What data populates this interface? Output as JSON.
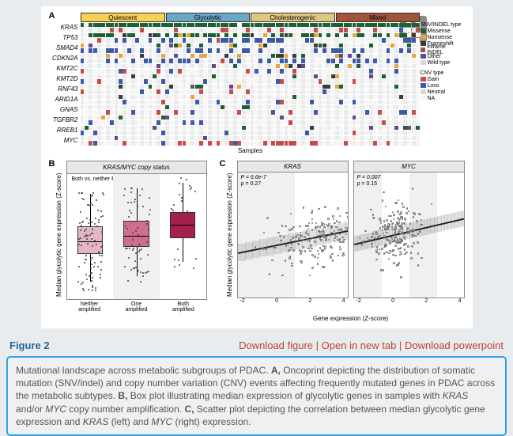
{
  "figure_label": "Figure 2",
  "links": {
    "download_fig": "Download figure",
    "new_tab": "Open in new tab",
    "download_ppt": "Download powerpoint"
  },
  "caption_parts": {
    "lead": "Mutational landscape across metabolic subgroups of PDAC. ",
    "A_lbl": "A,",
    "A_txt": " Oncoprint depicting the distribution of somatic mutation (SNV/indel) and copy number variation (CNV) events affecting frequently mutated genes in PDAC across the metabolic subtypes. ",
    "B_lbl": "B,",
    "B_txt_a": " Box plot illustrating median expression of glycolytic genes in samples with ",
    "B_i1": "KRAS",
    "B_txt_b": " and/or ",
    "B_i2": "MYC",
    "B_txt_c": " copy number amplification. ",
    "C_lbl": "C,",
    "C_txt_a": " Scatter plot depicting the correlation between median glycolytic gene expression and ",
    "C_i1": "KRAS",
    "C_txt_b": " (left) and ",
    "C_i2": "MYC",
    "C_txt_c": " (right) expression."
  },
  "oncoprint": {
    "panel_letter": "A",
    "subtypes": [
      {
        "label": "Quiescent",
        "color": "#f7d154"
      },
      {
        "label": "Glycolytic",
        "color": "#6aa7c4"
      },
      {
        "label": "Cholesterogenic",
        "color": "#e0c77f"
      },
      {
        "label": "Mixed",
        "color": "#a0543a"
      }
    ],
    "genes": [
      "KRAS",
      "TP53",
      "SMAD4",
      "CDKN2A",
      "KMT2C",
      "KMT2D",
      "RNF43",
      "ARID1A",
      "GNAS",
      "TGFBR2",
      "RREB1",
      "MYC"
    ],
    "samples_label": "Samples",
    "snv_legend_title": "SNV/INDEL type",
    "snv_legend": [
      {
        "label": "Missense",
        "color": "#1b6131"
      },
      {
        "label": "Nonsense",
        "color": "#e7a53c"
      },
      {
        "label": "Frameshift",
        "color": "#3b3b3b"
      },
      {
        "label": "Inframe INDEL",
        "color": "#9b5050"
      },
      {
        "label": "Other",
        "color": "#614a8a"
      },
      {
        "label": "Wild type",
        "color": "#d8d8d8"
      }
    ],
    "cnv_legend_title": "CNV type",
    "cnv_legend": [
      {
        "label": "Gain",
        "color": "#c94c4c"
      },
      {
        "label": "Loss",
        "color": "#3d5aa8"
      },
      {
        "label": "Neutral",
        "color": "#d8d8d8"
      },
      {
        "label": "NA",
        "color": "#f4f4f4"
      }
    ],
    "n_samples": 80,
    "grid_bg_even": "#eaeaea",
    "grid_bg_odd": "#f6f6f6",
    "mutation_rates": {
      "KRAS": {
        "snv_mix": {
          "Missense": 0.95,
          "Wild": 0.05
        },
        "cnv_mix": {
          "Gain": 0.25,
          "Loss": 0.02,
          "Neutral": 0.6,
          "NA": 0.13
        }
      },
      "TP53": {
        "snv_mix": {
          "Missense": 0.45,
          "Nonsense": 0.1,
          "Frameshift": 0.1,
          "Wild": 0.35
        },
        "cnv_mix": {
          "Gain": 0.05,
          "Loss": 0.25,
          "Neutral": 0.55,
          "NA": 0.15
        }
      },
      "SMAD4": {
        "snv_mix": {
          "Missense": 0.1,
          "Nonsense": 0.05,
          "Frameshift": 0.05,
          "Wild": 0.8
        },
        "cnv_mix": {
          "Gain": 0.02,
          "Loss": 0.35,
          "Neutral": 0.5,
          "NA": 0.13
        }
      },
      "CDKN2A": {
        "snv_mix": {
          "Missense": 0.05,
          "Nonsense": 0.05,
          "Frameshift": 0.08,
          "Wild": 0.82
        },
        "cnv_mix": {
          "Gain": 0.02,
          "Loss": 0.45,
          "Neutral": 0.4,
          "NA": 0.13
        }
      },
      "KMT2C": {
        "snv_mix": {
          "Missense": 0.06,
          "Nonsense": 0.03,
          "Frameshift": 0.02,
          "Wild": 0.89
        },
        "cnv_mix": {
          "Gain": 0.05,
          "Loss": 0.08,
          "Neutral": 0.72,
          "NA": 0.15
        }
      },
      "KMT2D": {
        "snv_mix": {
          "Missense": 0.05,
          "Nonsense": 0.02,
          "Frameshift": 0.02,
          "Wild": 0.91
        },
        "cnv_mix": {
          "Gain": 0.04,
          "Loss": 0.06,
          "Neutral": 0.75,
          "NA": 0.15
        }
      },
      "RNF43": {
        "snv_mix": {
          "Missense": 0.04,
          "Nonsense": 0.03,
          "Frameshift": 0.03,
          "Wild": 0.9
        },
        "cnv_mix": {
          "Gain": 0.03,
          "Loss": 0.08,
          "Neutral": 0.74,
          "NA": 0.15
        }
      },
      "ARID1A": {
        "snv_mix": {
          "Missense": 0.04,
          "Nonsense": 0.03,
          "Frameshift": 0.04,
          "Wild": 0.89
        },
        "cnv_mix": {
          "Gain": 0.02,
          "Loss": 0.1,
          "Neutral": 0.73,
          "NA": 0.15
        }
      },
      "GNAS": {
        "snv_mix": {
          "Missense": 0.05,
          "Wild": 0.95
        },
        "cnv_mix": {
          "Gain": 0.1,
          "Loss": 0.03,
          "Neutral": 0.72,
          "NA": 0.15
        }
      },
      "TGFBR2": {
        "snv_mix": {
          "Missense": 0.03,
          "Nonsense": 0.02,
          "Frameshift": 0.02,
          "Wild": 0.93
        },
        "cnv_mix": {
          "Gain": 0.02,
          "Loss": 0.08,
          "Neutral": 0.75,
          "NA": 0.15
        }
      },
      "RREB1": {
        "snv_mix": {
          "Missense": 0.04,
          "Frameshift": 0.02,
          "Wild": 0.94
        },
        "cnv_mix": {
          "Gain": 0.03,
          "Loss": 0.07,
          "Neutral": 0.75,
          "NA": 0.15
        }
      },
      "MYC": {
        "snv_mix": {
          "Missense": 0.01,
          "Wild": 0.99
        },
        "cnv_mix": {
          "Gain": 0.3,
          "Loss": 0.02,
          "Neutral": 0.55,
          "NA": 0.13
        }
      }
    }
  },
  "boxplot": {
    "panel_letter": "B",
    "title_text": "KRAS/MYC copy status",
    "title_italic_parts": [
      "KRAS",
      "MYC"
    ],
    "pval_text": "Both vs. neither P = 0.015",
    "ylabel": "Median glycolytic gene expression (Z-score)",
    "ylim": [
      -2.2,
      2.2
    ],
    "categories": [
      "Neither amplified",
      "One amplified",
      "Both amplified"
    ],
    "box_colors": [
      "#e2b6c2",
      "#cf6d8c",
      "#a71f4d"
    ],
    "boxes": [
      {
        "q1": -0.6,
        "med": -0.15,
        "q3": 0.35,
        "lo": -1.6,
        "hi": 1.5,
        "n_jitter": 95
      },
      {
        "q1": -0.35,
        "med": 0.05,
        "q3": 0.55,
        "lo": -1.4,
        "hi": 1.7,
        "n_jitter": 60
      },
      {
        "q1": -0.05,
        "med": 0.45,
        "q3": 0.85,
        "lo": -0.9,
        "hi": 1.9,
        "n_jitter": 25
      }
    ],
    "strip_color": "#f0f0f0"
  },
  "scatter": {
    "panel_letter": "C",
    "ylabel": "Median glycolytic gene expression (Z-score)",
    "xlabel": "Gene expression (Z-score)",
    "xlim": [
      -3,
      5
    ],
    "ylim": [
      -2.5,
      2.5
    ],
    "xticks": [
      -2,
      0,
      2,
      4
    ],
    "panels": [
      {
        "title": "KRAS",
        "stats": {
          "p": "P = 6.6e-7",
          "rho": "ρ = 0.27"
        },
        "n_points": 220,
        "slope": 0.23,
        "intercept": 0.0,
        "band_half": 0.35,
        "point_color": "#7a7a7a"
      },
      {
        "title": "MYC",
        "stats": {
          "p": "P = 0.007",
          "rho": "ρ = 0.15"
        },
        "n_points": 220,
        "slope": 0.13,
        "intercept": 0.05,
        "band_half": 0.32,
        "point_color": "#7a7a7a"
      }
    ],
    "strip_color": "#f0f0f0"
  }
}
